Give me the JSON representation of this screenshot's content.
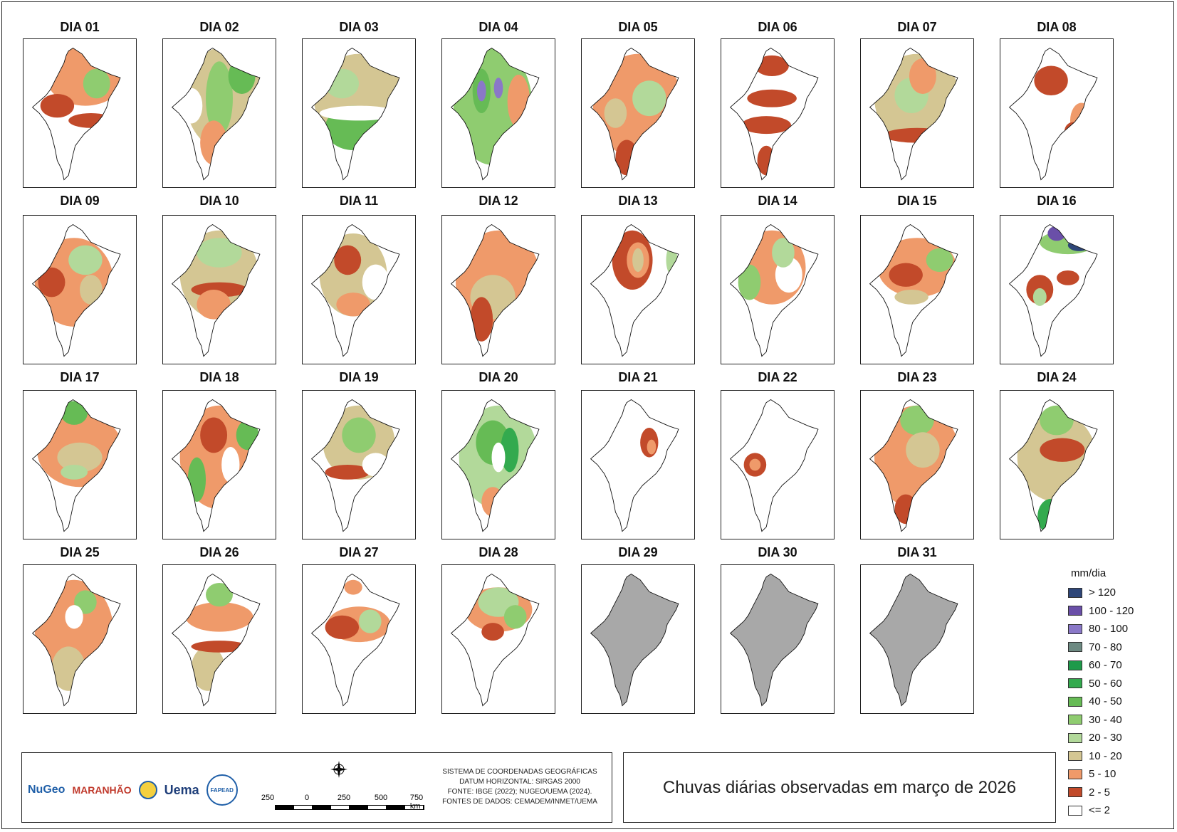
{
  "title": "Chuvas diárias observadas em março de 2026",
  "legend": {
    "title": "mm/dia",
    "classes": [
      {
        "label": "> 120",
        "color": "#2e4678"
      },
      {
        "label": "100 - 120",
        "color": "#6a4fa8"
      },
      {
        "label": "80 - 100",
        "color": "#8a78c8"
      },
      {
        "label": "70 - 80",
        "color": "#6d8a82"
      },
      {
        "label": "60 - 70",
        "color": "#1e9a4a"
      },
      {
        "label": "50 - 60",
        "color": "#33aa4e"
      },
      {
        "label": "40 - 50",
        "color": "#66bb55"
      },
      {
        "label": "30 - 40",
        "color": "#8fcc70"
      },
      {
        "label": "20 - 30",
        "color": "#b2d99a"
      },
      {
        "label": "10 - 20",
        "color": "#d4c693"
      },
      {
        "label": "5 - 10",
        "color": "#ef9a6a"
      },
      {
        "label": "2 - 5",
        "color": "#c24a2a"
      },
      {
        "label": "<= 2",
        "color": "#ffffff"
      }
    ]
  },
  "no_data_color": "#a8a8a8",
  "days": [
    {
      "label": "DIA 01",
      "blobs": [
        [
          0.55,
          0.25,
          0.35,
          0.2,
          "#ef9a6a"
        ],
        [
          0.65,
          0.3,
          0.12,
          0.1,
          "#8fcc70"
        ],
        [
          0.3,
          0.45,
          0.15,
          0.08,
          "#c24a2a"
        ],
        [
          0.6,
          0.55,
          0.2,
          0.05,
          "#c24a2a"
        ]
      ]
    },
    {
      "label": "DIA 02",
      "blobs": [
        [
          0.55,
          0.4,
          0.35,
          0.35,
          "#d4c693"
        ],
        [
          0.5,
          0.4,
          0.12,
          0.25,
          "#8fcc70"
        ],
        [
          0.7,
          0.25,
          0.12,
          0.12,
          "#66bb55"
        ],
        [
          0.45,
          0.7,
          0.12,
          0.15,
          "#ef9a6a"
        ],
        [
          0.25,
          0.45,
          0.1,
          0.12,
          "#ffffff"
        ]
      ]
    },
    {
      "label": "DIA 03",
      "blobs": [
        [
          0.5,
          0.4,
          0.4,
          0.3,
          "#d4c693"
        ],
        [
          0.45,
          0.6,
          0.25,
          0.15,
          "#66bb55"
        ],
        [
          0.5,
          0.5,
          0.35,
          0.05,
          "#ffffff"
        ],
        [
          0.35,
          0.3,
          0.15,
          0.1,
          "#b2d99a"
        ]
      ]
    },
    {
      "label": "DIA 04",
      "blobs": [
        [
          0.45,
          0.45,
          0.35,
          0.4,
          "#8fcc70"
        ],
        [
          0.35,
          0.35,
          0.08,
          0.15,
          "#66bb55"
        ],
        [
          0.35,
          0.35,
          0.04,
          0.07,
          "#8a78c8"
        ],
        [
          0.5,
          0.33,
          0.04,
          0.07,
          "#8a78c8"
        ],
        [
          0.68,
          0.42,
          0.1,
          0.18,
          "#ef9a6a"
        ]
      ]
    },
    {
      "label": "DIA 05",
      "blobs": [
        [
          0.5,
          0.45,
          0.4,
          0.35,
          "#ef9a6a"
        ],
        [
          0.6,
          0.4,
          0.15,
          0.12,
          "#b2d99a"
        ],
        [
          0.4,
          0.8,
          0.1,
          0.12,
          "#c24a2a"
        ],
        [
          0.3,
          0.5,
          0.1,
          0.1,
          "#d4c693"
        ]
      ]
    },
    {
      "label": "DIA 06",
      "blobs": [
        [
          0.45,
          0.4,
          0.22,
          0.06,
          "#c24a2a"
        ],
        [
          0.4,
          0.58,
          0.22,
          0.06,
          "#c24a2a"
        ],
        [
          0.45,
          0.18,
          0.15,
          0.07,
          "#c24a2a"
        ],
        [
          0.4,
          0.82,
          0.08,
          0.1,
          "#c24a2a"
        ]
      ]
    },
    {
      "label": "DIA 07",
      "blobs": [
        [
          0.5,
          0.4,
          0.38,
          0.3,
          "#d4c693"
        ],
        [
          0.45,
          0.38,
          0.15,
          0.12,
          "#b2d99a"
        ],
        [
          0.55,
          0.25,
          0.12,
          0.12,
          "#ef9a6a"
        ],
        [
          0.5,
          0.65,
          0.3,
          0.05,
          "#c24a2a"
        ]
      ]
    },
    {
      "label": "DIA 08",
      "blobs": [
        [
          0.45,
          0.28,
          0.15,
          0.1,
          "#c24a2a"
        ],
        [
          0.72,
          0.55,
          0.1,
          0.12,
          "#ef9a6a"
        ],
        [
          0.65,
          0.62,
          0.08,
          0.06,
          "#c24a2a"
        ]
      ]
    },
    {
      "label": "DIA 09",
      "blobs": [
        [
          0.45,
          0.45,
          0.35,
          0.3,
          "#ef9a6a"
        ],
        [
          0.55,
          0.3,
          0.15,
          0.1,
          "#b2d99a"
        ],
        [
          0.25,
          0.45,
          0.12,
          0.1,
          "#c24a2a"
        ],
        [
          0.6,
          0.5,
          0.1,
          0.1,
          "#d4c693"
        ]
      ]
    },
    {
      "label": "DIA 10",
      "blobs": [
        [
          0.5,
          0.4,
          0.35,
          0.3,
          "#d4c693"
        ],
        [
          0.5,
          0.5,
          0.25,
          0.05,
          "#c24a2a"
        ],
        [
          0.5,
          0.25,
          0.2,
          0.1,
          "#b2d99a"
        ],
        [
          0.45,
          0.6,
          0.15,
          0.1,
          "#ef9a6a"
        ]
      ]
    },
    {
      "label": "DIA 11",
      "blobs": [
        [
          0.45,
          0.4,
          0.3,
          0.28,
          "#d4c693"
        ],
        [
          0.65,
          0.45,
          0.12,
          0.12,
          "#ffffff"
        ],
        [
          0.45,
          0.6,
          0.15,
          0.08,
          "#ef9a6a"
        ],
        [
          0.4,
          0.3,
          0.12,
          0.1,
          "#c24a2a"
        ]
      ]
    },
    {
      "label": "DIA 12",
      "blobs": [
        [
          0.5,
          0.45,
          0.38,
          0.35,
          "#ef9a6a"
        ],
        [
          0.45,
          0.55,
          0.2,
          0.15,
          "#d4c693"
        ],
        [
          0.35,
          0.7,
          0.1,
          0.15,
          "#c24a2a"
        ]
      ]
    },
    {
      "label": "DIA 13",
      "blobs": [
        [
          0.45,
          0.3,
          0.18,
          0.2,
          "#c24a2a"
        ],
        [
          0.5,
          0.3,
          0.1,
          0.12,
          "#ef9a6a"
        ],
        [
          0.5,
          0.3,
          0.05,
          0.08,
          "#d4c693"
        ],
        [
          0.8,
          0.3,
          0.05,
          0.1,
          "#b2d99a"
        ]
      ]
    },
    {
      "label": "DIA 14",
      "blobs": [
        [
          0.45,
          0.35,
          0.3,
          0.25,
          "#ef9a6a"
        ],
        [
          0.6,
          0.4,
          0.12,
          0.12,
          "#ffffff"
        ],
        [
          0.25,
          0.45,
          0.1,
          0.12,
          "#8fcc70"
        ],
        [
          0.55,
          0.25,
          0.1,
          0.1,
          "#b2d99a"
        ]
      ]
    },
    {
      "label": "DIA 15",
      "blobs": [
        [
          0.5,
          0.35,
          0.35,
          0.2,
          "#ef9a6a"
        ],
        [
          0.7,
          0.3,
          0.12,
          0.08,
          "#8fcc70"
        ],
        [
          0.4,
          0.4,
          0.15,
          0.08,
          "#c24a2a"
        ],
        [
          0.45,
          0.55,
          0.15,
          0.05,
          "#d4c693"
        ]
      ]
    },
    {
      "label": "DIA 16",
      "blobs": [
        [
          0.6,
          0.18,
          0.25,
          0.08,
          "#8fcc70"
        ],
        [
          0.5,
          0.12,
          0.08,
          0.05,
          "#6a4fa8"
        ],
        [
          0.7,
          0.2,
          0.1,
          0.04,
          "#2e4678"
        ],
        [
          0.35,
          0.5,
          0.12,
          0.1,
          "#c24a2a"
        ],
        [
          0.35,
          0.55,
          0.06,
          0.06,
          "#b2d99a"
        ],
        [
          0.6,
          0.42,
          0.1,
          0.05,
          "#c24a2a"
        ]
      ]
    },
    {
      "label": "DIA 17",
      "blobs": [
        [
          0.5,
          0.4,
          0.38,
          0.25,
          "#ef9a6a"
        ],
        [
          0.5,
          0.45,
          0.2,
          0.1,
          "#d4c693"
        ],
        [
          0.45,
          0.55,
          0.12,
          0.05,
          "#b2d99a"
        ],
        [
          0.45,
          0.15,
          0.12,
          0.08,
          "#66bb55"
        ]
      ]
    },
    {
      "label": "DIA 18",
      "blobs": [
        [
          0.5,
          0.45,
          0.35,
          0.35,
          "#ef9a6a"
        ],
        [
          0.3,
          0.6,
          0.08,
          0.15,
          "#66bb55"
        ],
        [
          0.75,
          0.3,
          0.1,
          0.1,
          "#66bb55"
        ],
        [
          0.45,
          0.3,
          0.12,
          0.12,
          "#c24a2a"
        ],
        [
          0.6,
          0.5,
          0.08,
          0.12,
          "#ffffff"
        ]
      ]
    },
    {
      "label": "DIA 19",
      "blobs": [
        [
          0.5,
          0.35,
          0.32,
          0.25,
          "#d4c693"
        ],
        [
          0.5,
          0.3,
          0.15,
          0.12,
          "#8fcc70"
        ],
        [
          0.4,
          0.55,
          0.2,
          0.05,
          "#c24a2a"
        ],
        [
          0.65,
          0.5,
          0.12,
          0.08,
          "#ffffff"
        ]
      ]
    },
    {
      "label": "DIA 20",
      "blobs": [
        [
          0.5,
          0.45,
          0.35,
          0.35,
          "#b2d99a"
        ],
        [
          0.45,
          0.35,
          0.15,
          0.15,
          "#66bb55"
        ],
        [
          0.6,
          0.4,
          0.08,
          0.15,
          "#33aa4e"
        ],
        [
          0.5,
          0.45,
          0.06,
          0.1,
          "#ffffff"
        ],
        [
          0.45,
          0.75,
          0.1,
          0.1,
          "#ef9a6a"
        ]
      ]
    },
    {
      "label": "DIA 21",
      "blobs": [
        [
          0.6,
          0.35,
          0.08,
          0.1,
          "#c24a2a"
        ],
        [
          0.62,
          0.38,
          0.04,
          0.05,
          "#ef9a6a"
        ]
      ]
    },
    {
      "label": "DIA 22",
      "blobs": [
        [
          0.3,
          0.5,
          0.1,
          0.08,
          "#c24a2a"
        ],
        [
          0.3,
          0.5,
          0.05,
          0.04,
          "#ef9a6a"
        ]
      ]
    },
    {
      "label": "DIA 23",
      "blobs": [
        [
          0.5,
          0.45,
          0.38,
          0.35,
          "#ef9a6a"
        ],
        [
          0.5,
          0.2,
          0.15,
          0.1,
          "#8fcc70"
        ],
        [
          0.55,
          0.4,
          0.15,
          0.12,
          "#d4c693"
        ],
        [
          0.4,
          0.8,
          0.1,
          0.1,
          "#c24a2a"
        ]
      ]
    },
    {
      "label": "DIA 24",
      "blobs": [
        [
          0.5,
          0.45,
          0.35,
          0.3,
          "#d4c693"
        ],
        [
          0.5,
          0.2,
          0.15,
          0.1,
          "#8fcc70"
        ],
        [
          0.55,
          0.4,
          0.2,
          0.08,
          "#c24a2a"
        ],
        [
          0.45,
          0.85,
          0.12,
          0.12,
          "#33aa4e"
        ]
      ]
    },
    {
      "label": "DIA 25",
      "blobs": [
        [
          0.45,
          0.45,
          0.35,
          0.35,
          "#ef9a6a"
        ],
        [
          0.4,
          0.7,
          0.15,
          0.15,
          "#d4c693"
        ],
        [
          0.55,
          0.25,
          0.1,
          0.08,
          "#8fcc70"
        ],
        [
          0.45,
          0.35,
          0.08,
          0.08,
          "#ffffff"
        ]
      ]
    },
    {
      "label": "DIA 26",
      "blobs": [
        [
          0.5,
          0.35,
          0.3,
          0.1,
          "#ef9a6a"
        ],
        [
          0.4,
          0.7,
          0.15,
          0.15,
          "#d4c693"
        ],
        [
          0.5,
          0.2,
          0.12,
          0.08,
          "#8fcc70"
        ],
        [
          0.5,
          0.55,
          0.25,
          0.04,
          "#c24a2a"
        ]
      ]
    },
    {
      "label": "DIA 27",
      "blobs": [
        [
          0.5,
          0.4,
          0.28,
          0.12,
          "#ef9a6a"
        ],
        [
          0.35,
          0.42,
          0.15,
          0.08,
          "#c24a2a"
        ],
        [
          0.6,
          0.38,
          0.1,
          0.08,
          "#b2d99a"
        ],
        [
          0.45,
          0.15,
          0.08,
          0.05,
          "#ef9a6a"
        ]
      ]
    },
    {
      "label": "DIA 28",
      "blobs": [
        [
          0.5,
          0.3,
          0.3,
          0.15,
          "#ef9a6a"
        ],
        [
          0.5,
          0.25,
          0.18,
          0.1,
          "#b2d99a"
        ],
        [
          0.65,
          0.35,
          0.1,
          0.08,
          "#8fcc70"
        ],
        [
          0.45,
          0.45,
          0.1,
          0.06,
          "#c24a2a"
        ]
      ]
    },
    {
      "label": "DIA 29",
      "nodata": true,
      "blobs": []
    },
    {
      "label": "DIA 30",
      "nodata": true,
      "blobs": []
    },
    {
      "label": "DIA 31",
      "nodata": true,
      "blobs": []
    }
  ],
  "footer": {
    "logos": [
      "NuGeo",
      "MARANHÃO",
      "Uema",
      "FAPEAD"
    ],
    "crs_lines": [
      "SISTEMA DE COORDENADAS GEOGRÁFICAS",
      "DATUM HORIZONTAL: SIRGAS 2000",
      "FONTE: IBGE (2022); NUGEO/UEMA (2024).",
      "FONTES DE DADOS: CEMADEM/INMET/UEMA"
    ],
    "scale_labels": [
      "250",
      "0",
      "250",
      "500",
      "750 km"
    ]
  }
}
